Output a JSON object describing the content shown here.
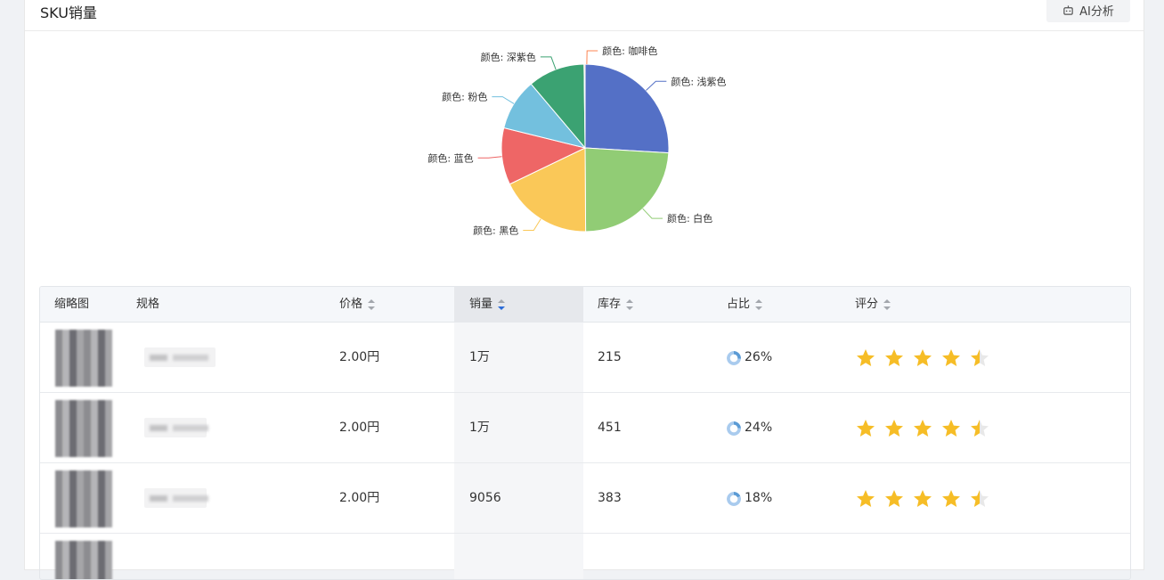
{
  "header": {
    "title": "SKU销量",
    "ai_button": "AI分析",
    "ai_icon": "robot-icon"
  },
  "chart_data": {
    "type": "pie",
    "slices": [
      {
        "label": "颜色: 浅紫色",
        "value": 26,
        "color": "#5470c6"
      },
      {
        "label": "颜色: 白色",
        "value": 24,
        "color": "#91cc75"
      },
      {
        "label": "颜色: 黑色",
        "value": 18,
        "color": "#fac858"
      },
      {
        "label": "颜色: 蓝色",
        "value": 11,
        "color": "#ee6666"
      },
      {
        "label": "颜色: 粉色",
        "value": 10,
        "color": "#73c0de"
      },
      {
        "label": "颜色: 深紫色",
        "value": 11,
        "color": "#3ba272"
      },
      {
        "label": "颜色: 咖啡色",
        "value": 0.2,
        "color": "#fc8452"
      }
    ]
  },
  "table": {
    "columns": [
      "缩略图",
      "规格",
      "价格",
      "销量",
      "库存",
      "占比",
      "评分"
    ],
    "sorted_column": "销量",
    "rows": [
      {
        "price": "2.00円",
        "sales": "1万",
        "stock": "215",
        "ratio": "26%",
        "ratio_value": 26,
        "rating": 4.5
      },
      {
        "price": "2.00円",
        "sales": "1万",
        "stock": "451",
        "ratio": "24%",
        "ratio_value": 24,
        "rating": 4.5
      },
      {
        "price": "2.00円",
        "sales": "9056",
        "stock": "383",
        "ratio": "18%",
        "ratio_value": 18,
        "rating": 4.5
      }
    ]
  },
  "colors": {
    "star": "#f6bd26",
    "star_empty": "#e8e8e8",
    "donut": "#5b9bd5",
    "sort_active": "#2b6cd8"
  }
}
